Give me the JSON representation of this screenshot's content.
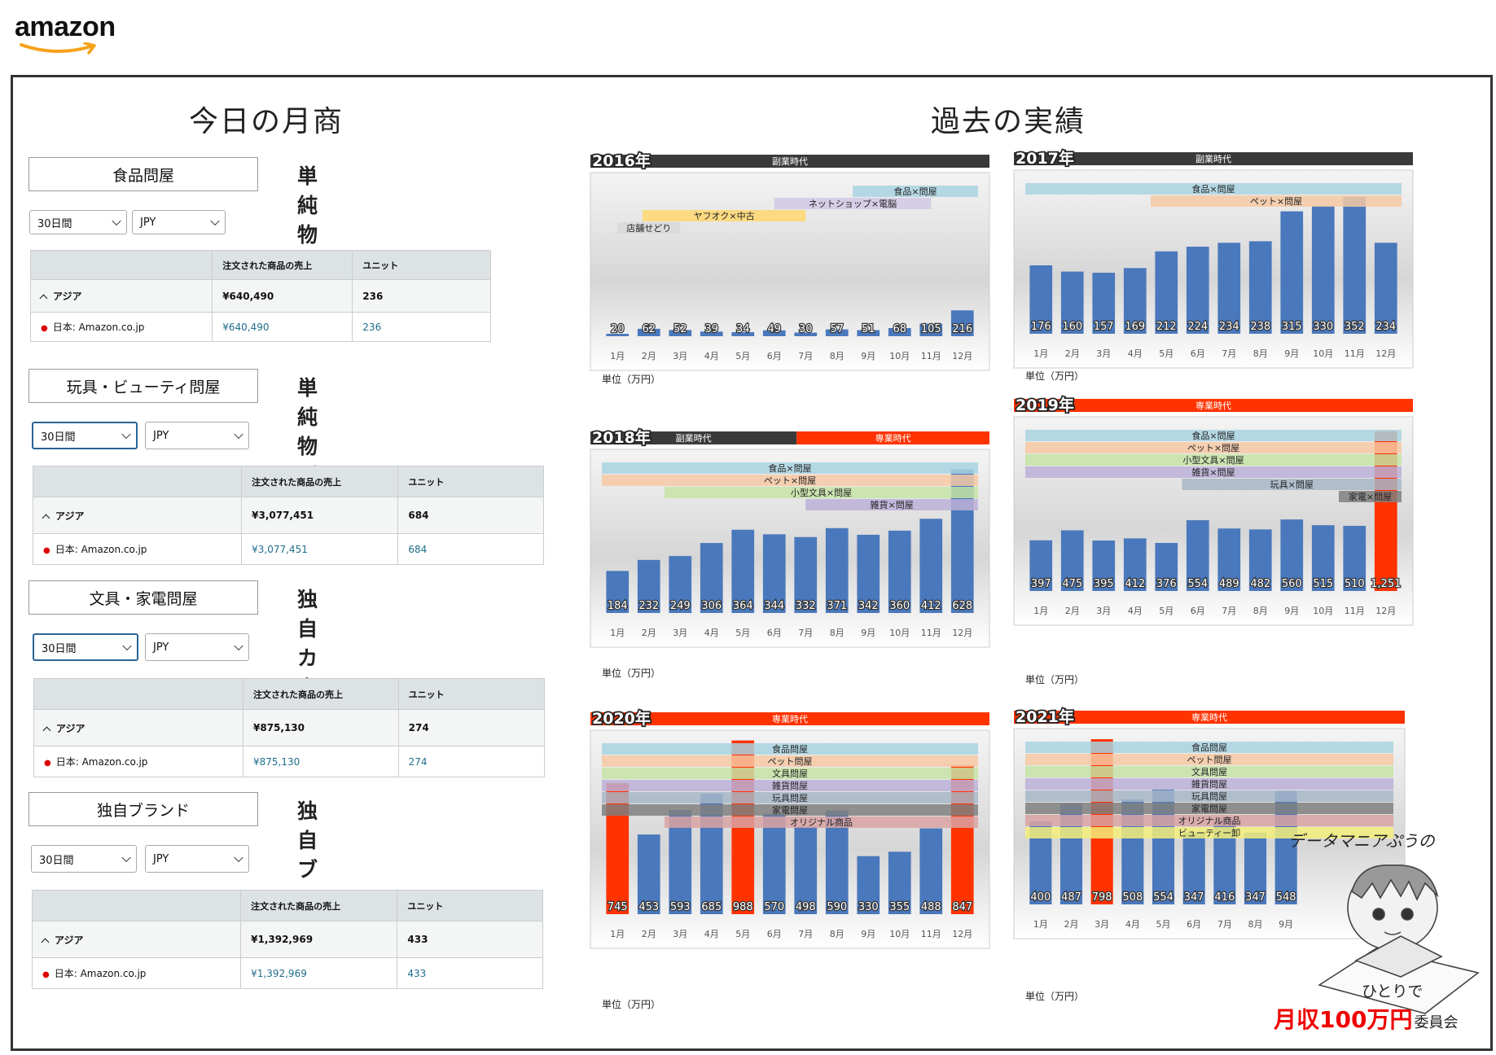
{
  "logo": "amazon",
  "titles": {
    "left": "今日の月商",
    "right": "過去の実績"
  },
  "panels": [
    {
      "name": "食品問屋",
      "type": "単純物販",
      "period": "30日間",
      "currency": "JPY",
      "col_sales": "注文された商品の売上",
      "col_units": "ユニット",
      "region": "アジア",
      "region_sales": "¥640,490",
      "region_units": "236",
      "market": "日本: Amazon.co.jp",
      "market_sales": "¥640,490",
      "market_units": "236"
    },
    {
      "name": "玩具・ビューティ問屋",
      "type": "単純物販",
      "period": "30日間",
      "currency": "JPY",
      "col_sales": "注文された商品の売上",
      "col_units": "ユニット",
      "region": "アジア",
      "region_sales": "¥3,077,451",
      "region_units": "684",
      "market": "日本: Amazon.co.jp",
      "market_sales": "¥3,077,451",
      "market_units": "684"
    },
    {
      "name": "文具・家電問屋",
      "type": "独自カタログ",
      "period": "30日間",
      "currency": "JPY",
      "col_sales": "注文された商品の売上",
      "col_units": "ユニット",
      "region": "アジア",
      "region_sales": "¥875,130",
      "region_units": "274",
      "market": "日本: Amazon.co.jp",
      "market_sales": "¥875,130",
      "market_units": "274"
    },
    {
      "name": "独自ブランド",
      "type": "独自ブランド",
      "period": "30日間",
      "currency": "JPY",
      "col_sales": "注文された商品の売上",
      "col_units": "ユニット",
      "region": "アジア",
      "region_sales": "¥1,392,969",
      "region_units": "433",
      "market": "日本: Amazon.co.jp",
      "market_sales": "¥1,392,969",
      "market_units": "433"
    }
  ],
  "unit_label": "単位（万円）",
  "colors": {
    "bar": "#4a78bc",
    "highlight": "#ff3300",
    "era_side": "#3a3a3a",
    "era_full": "#ff3300"
  },
  "chart_data": [
    {
      "type": "bar",
      "title": "2016年",
      "eras": [
        {
          "label": "副業時代",
          "kind": "side",
          "from": 0,
          "to": 12
        }
      ],
      "categories": [
        "1月",
        "2月",
        "3月",
        "4月",
        "5月",
        "6月",
        "7月",
        "8月",
        "9月",
        "10月",
        "11月",
        "12月"
      ],
      "values": [
        20,
        62,
        52,
        39,
        34,
        49,
        30,
        57,
        51,
        68,
        105,
        216
      ],
      "highlight": [],
      "ribbons": [
        {
          "label": "食品×問屋",
          "color": "#a9d3e0",
          "from": 8,
          "to": 12
        },
        {
          "label": "ネットショップ×電脳",
          "color": "#d2c9e6",
          "from": 5.5,
          "to": 10.5
        },
        {
          "label": "ヤフオク×中古",
          "color": "#ffd76e",
          "from": 1.3,
          "to": 6.5
        },
        {
          "label": "店舗せどり",
          "color": "#d8d8d8",
          "from": 0.5,
          "to": 2.5
        }
      ],
      "ylim": [
        0,
        1300
      ]
    },
    {
      "type": "bar",
      "title": "2017年",
      "eras": [
        {
          "label": "副業時代",
          "kind": "side",
          "from": 0,
          "to": 12
        }
      ],
      "categories": [
        "1月",
        "2月",
        "3月",
        "4月",
        "5月",
        "6月",
        "7月",
        "8月",
        "9月",
        "10月",
        "11月",
        "12月"
      ],
      "values": [
        176,
        160,
        157,
        169,
        212,
        224,
        234,
        238,
        315,
        330,
        352,
        234
      ],
      "highlight": [],
      "ribbons": [
        {
          "label": "食品×問屋",
          "color": "#a9d3e0",
          "from": 0,
          "to": 12
        },
        {
          "label": "ペット×問屋",
          "color": "#f6c9a4",
          "from": 4,
          "to": 12
        }
      ],
      "ylim": [
        0,
        400
      ]
    },
    {
      "type": "bar",
      "title": "2018年",
      "eras": [
        {
          "label": "副業時代",
          "kind": "side",
          "from": 0,
          "to": 6.2
        },
        {
          "label": "専業時代",
          "kind": "full",
          "from": 6.2,
          "to": 12
        }
      ],
      "categories": [
        "1月",
        "2月",
        "3月",
        "4月",
        "5月",
        "6月",
        "7月",
        "8月",
        "9月",
        "10月",
        "11月",
        "12月"
      ],
      "values": [
        184,
        232,
        249,
        306,
        364,
        344,
        332,
        371,
        342,
        360,
        412,
        628
      ],
      "highlight": [],
      "ribbons": [
        {
          "label": "食品×問屋",
          "color": "#a9d3e0",
          "from": 0,
          "to": 12
        },
        {
          "label": "ペット×問屋",
          "color": "#f6c9a4",
          "from": 0,
          "to": 12
        },
        {
          "label": "小型文具×問屋",
          "color": "#c6e3a6",
          "from": 2,
          "to": 12
        },
        {
          "label": "雑貨×問屋",
          "color": "#bcb0d8",
          "from": 6.5,
          "to": 12
        }
      ],
      "ylim": [
        0,
        680
      ]
    },
    {
      "type": "bar",
      "title": "2019年",
      "eras": [
        {
          "label": "専業時代",
          "kind": "full",
          "from": 0,
          "to": 12
        }
      ],
      "categories": [
        "1月",
        "2月",
        "3月",
        "4月",
        "5月",
        "6月",
        "7月",
        "8月",
        "9月",
        "10月",
        "11月",
        "12月"
      ],
      "values": [
        397,
        475,
        395,
        412,
        376,
        554,
        489,
        482,
        560,
        515,
        510,
        1251
      ],
      "highlight": [
        11
      ],
      "ribbons": [
        {
          "label": "食品×問屋",
          "color": "#a9d3e0",
          "from": 0,
          "to": 12
        },
        {
          "label": "ペット×問屋",
          "color": "#f6c9a4",
          "from": 0,
          "to": 12
        },
        {
          "label": "小型文具×問屋",
          "color": "#c6e3a6",
          "from": 0,
          "to": 12
        },
        {
          "label": "雑貨×問屋",
          "color": "#bcb0d8",
          "from": 0,
          "to": 12
        },
        {
          "label": "玩具×問屋",
          "color": "#a7b7c8",
          "from": 5,
          "to": 12
        },
        {
          "label": "家電×問屋",
          "color": "#808080",
          "from": 10,
          "to": 12
        }
      ],
      "ylim": [
        0,
        1300
      ]
    },
    {
      "type": "bar",
      "title": "2020年",
      "eras": [
        {
          "label": "専業時代",
          "kind": "full",
          "from": 0,
          "to": 12
        }
      ],
      "categories": [
        "1月",
        "2月",
        "3月",
        "4月",
        "5月",
        "6月",
        "7月",
        "8月",
        "9月",
        "10月",
        "11月",
        "12月"
      ],
      "values": [
        745,
        453,
        593,
        685,
        988,
        570,
        498,
        590,
        330,
        355,
        488,
        847
      ],
      "highlight": [
        0,
        4,
        11
      ],
      "ribbons": [
        {
          "label": "食品問屋",
          "color": "#a9d3e0",
          "from": 0,
          "to": 12
        },
        {
          "label": "ペット問屋",
          "color": "#f6c9a4",
          "from": 0,
          "to": 12
        },
        {
          "label": "文具問屋",
          "color": "#c6e3a6",
          "from": 0,
          "to": 12
        },
        {
          "label": "雑貨問屋",
          "color": "#bcb0d8",
          "from": 0,
          "to": 12
        },
        {
          "label": "玩具問屋",
          "color": "#a7b7c8",
          "from": 0,
          "to": 12
        },
        {
          "label": "家電問屋",
          "color": "#808080",
          "from": 0,
          "to": 12
        },
        {
          "label": "オリジナル商品",
          "color": "#d9a3a3",
          "from": 2,
          "to": 12
        }
      ],
      "ylim": [
        0,
        1000
      ]
    },
    {
      "type": "bar",
      "title": "2021年",
      "eras": [
        {
          "label": "専業時代",
          "kind": "full",
          "from": 0,
          "to": 12
        }
      ],
      "categories": [
        "1月",
        "2月",
        "3月",
        "4月",
        "5月",
        "6月",
        "7月",
        "8月",
        "9月"
      ],
      "values": [
        400,
        487,
        798,
        508,
        554,
        347,
        416,
        347,
        548
      ],
      "highlight": [
        2
      ],
      "ribbons": [
        {
          "label": "食品問屋",
          "color": "#a9d3e0",
          "from": 0,
          "to": 12
        },
        {
          "label": "ペット問屋",
          "color": "#f6c9a4",
          "from": 0,
          "to": 12
        },
        {
          "label": "文具問屋",
          "color": "#c6e3a6",
          "from": 0,
          "to": 12
        },
        {
          "label": "雑貨問屋",
          "color": "#bcb0d8",
          "from": 0,
          "to": 12
        },
        {
          "label": "玩具問屋",
          "color": "#a7b7c8",
          "from": 0,
          "to": 12
        },
        {
          "label": "家電問屋",
          "color": "#808080",
          "from": 0,
          "to": 12
        },
        {
          "label": "オリジナル商品",
          "color": "#d9a3a3",
          "from": 0,
          "to": 12
        },
        {
          "label": "ビューティー卸",
          "color": "#f3ef7a",
          "from": 0,
          "to": 12
        }
      ],
      "ylim": [
        0,
        810
      ]
    }
  ],
  "mascot": {
    "top": "データマニアぷうの",
    "mid": "ひとりで",
    "bottom": "月収100万円",
    "suffix": "委員会"
  }
}
